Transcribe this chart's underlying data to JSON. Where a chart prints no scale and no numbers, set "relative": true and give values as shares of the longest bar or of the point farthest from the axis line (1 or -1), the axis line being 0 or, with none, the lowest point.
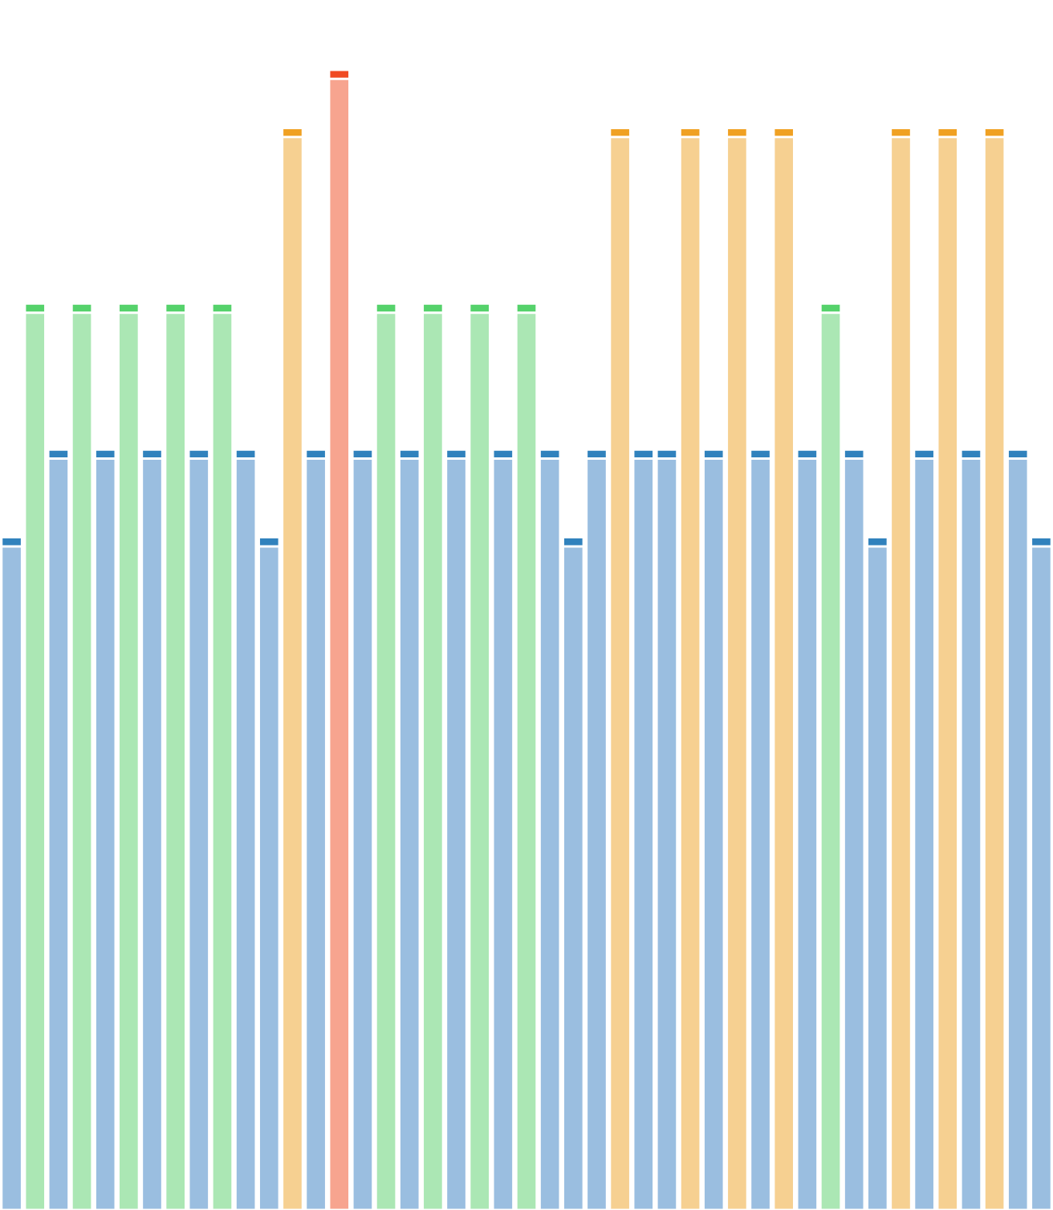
{
  "chart_data": {
    "type": "bar",
    "relative": true,
    "stacked": true,
    "categories": [
      null,
      null,
      null,
      null,
      null,
      null,
      null,
      null,
      null,
      null,
      null,
      null,
      null,
      null,
      null,
      null,
      null,
      null,
      null,
      null,
      null,
      null,
      null,
      null,
      null,
      null,
      null,
      null,
      null,
      null,
      null,
      null,
      null,
      null,
      null,
      null,
      null,
      null,
      null,
      null,
      null,
      null,
      null,
      null,
      null
    ],
    "series": [
      {
        "values": [
          0.582,
          0.787,
          0.659,
          0.787,
          0.659,
          0.787,
          0.659,
          0.787,
          0.659,
          0.787,
          0.659,
          0.582,
          0.941,
          0.659,
          0.992,
          0.659,
          0.787,
          0.659,
          0.787,
          0.659,
          0.787,
          0.659,
          0.787,
          0.659,
          0.582,
          0.659,
          0.941,
          0.659,
          0.659,
          0.941,
          0.659,
          0.941,
          0.659,
          0.941,
          0.659,
          0.787,
          0.659,
          0.582,
          0.941,
          0.659,
          0.941,
          0.659,
          0.941,
          0.659,
          0.582
        ],
        "colors": [
          "#9abee0",
          "#abe7b4",
          "#9abee0",
          "#abe7b4",
          "#9abee0",
          "#abe7b4",
          "#9abee0",
          "#abe7b4",
          "#9abee0",
          "#abe7b4",
          "#9abee0",
          "#9abee0",
          "#f6d091",
          "#9abee0",
          "#f7a48f",
          "#9abee0",
          "#abe7b4",
          "#9abee0",
          "#abe7b4",
          "#9abee0",
          "#abe7b4",
          "#9abee0",
          "#abe7b4",
          "#9abee0",
          "#9abee0",
          "#9abee0",
          "#f6d091",
          "#9abee0",
          "#9abee0",
          "#f6d091",
          "#9abee0",
          "#f6d091",
          "#9abee0",
          "#f6d091",
          "#9abee0",
          "#abe7b4",
          "#9abee0",
          "#9abee0",
          "#f6d091",
          "#9abee0",
          "#f6d091",
          "#9abee0",
          "#f6d091",
          "#9abee0",
          "#9abee0"
        ]
      },
      {
        "values": [
          0.008,
          0.008,
          0.008,
          0.008,
          0.008,
          0.008,
          0.008,
          0.008,
          0.008,
          0.008,
          0.008,
          0.008,
          0.008,
          0.008,
          0.008,
          0.008,
          0.008,
          0.008,
          0.008,
          0.008,
          0.008,
          0.008,
          0.008,
          0.008,
          0.008,
          0.008,
          0.008,
          0.008,
          0.008,
          0.008,
          0.008,
          0.008,
          0.008,
          0.008,
          0.008,
          0.008,
          0.008,
          0.008,
          0.008,
          0.008,
          0.008,
          0.008,
          0.008,
          0.008,
          0.008
        ],
        "colors": [
          "#3182bd",
          "#55d26b",
          "#3182bd",
          "#55d26b",
          "#3182bd",
          "#55d26b",
          "#3182bd",
          "#55d26b",
          "#3182bd",
          "#55d26b",
          "#3182bd",
          "#3182bd",
          "#f0a123",
          "#3182bd",
          "#f04a22",
          "#3182bd",
          "#55d26b",
          "#3182bd",
          "#55d26b",
          "#3182bd",
          "#55d26b",
          "#3182bd",
          "#55d26b",
          "#3182bd",
          "#3182bd",
          "#3182bd",
          "#f0a123",
          "#3182bd",
          "#3182bd",
          "#f0a123",
          "#3182bd",
          "#f0a123",
          "#3182bd",
          "#f0a123",
          "#3182bd",
          "#55d26b",
          "#3182bd",
          "#3182bd",
          "#f0a123",
          "#3182bd",
          "#f0a123",
          "#3182bd",
          "#f0a123",
          "#3182bd",
          "#3182bd"
        ]
      }
    ]
  }
}
